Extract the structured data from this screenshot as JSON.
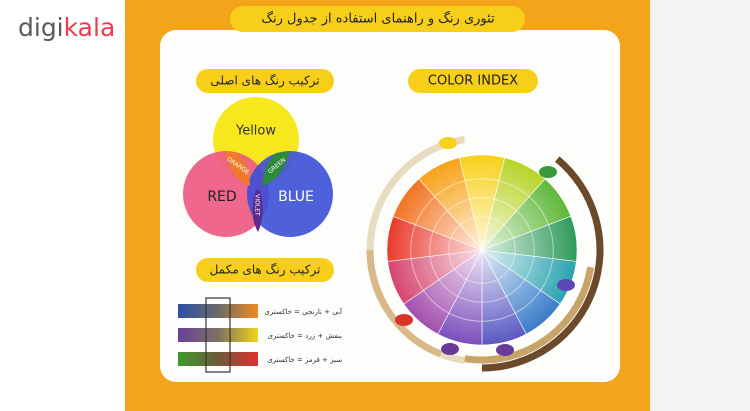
{
  "logo": {
    "part1": "digi",
    "part2": "kala"
  },
  "card": {
    "title": "تئوری رنگ و راهنمای استفاده از جدول رنگ",
    "primary_heading": "ترکیب رنگ های اصلی",
    "index_heading": "COLOR INDEX",
    "venn": {
      "yellow": "Yellow",
      "red": "RED",
      "blue": "BLUE",
      "orange": "ORANGE",
      "green": "GREEN",
      "violet": "VIOLET"
    },
    "complementary_heading": "ترکیب رنگ های مکمل",
    "mixes": [
      "آبی + نارنجی = خاکستری",
      "بنفش + زرد = خاکستری",
      "سبز + قرمز = خاکستری"
    ]
  }
}
